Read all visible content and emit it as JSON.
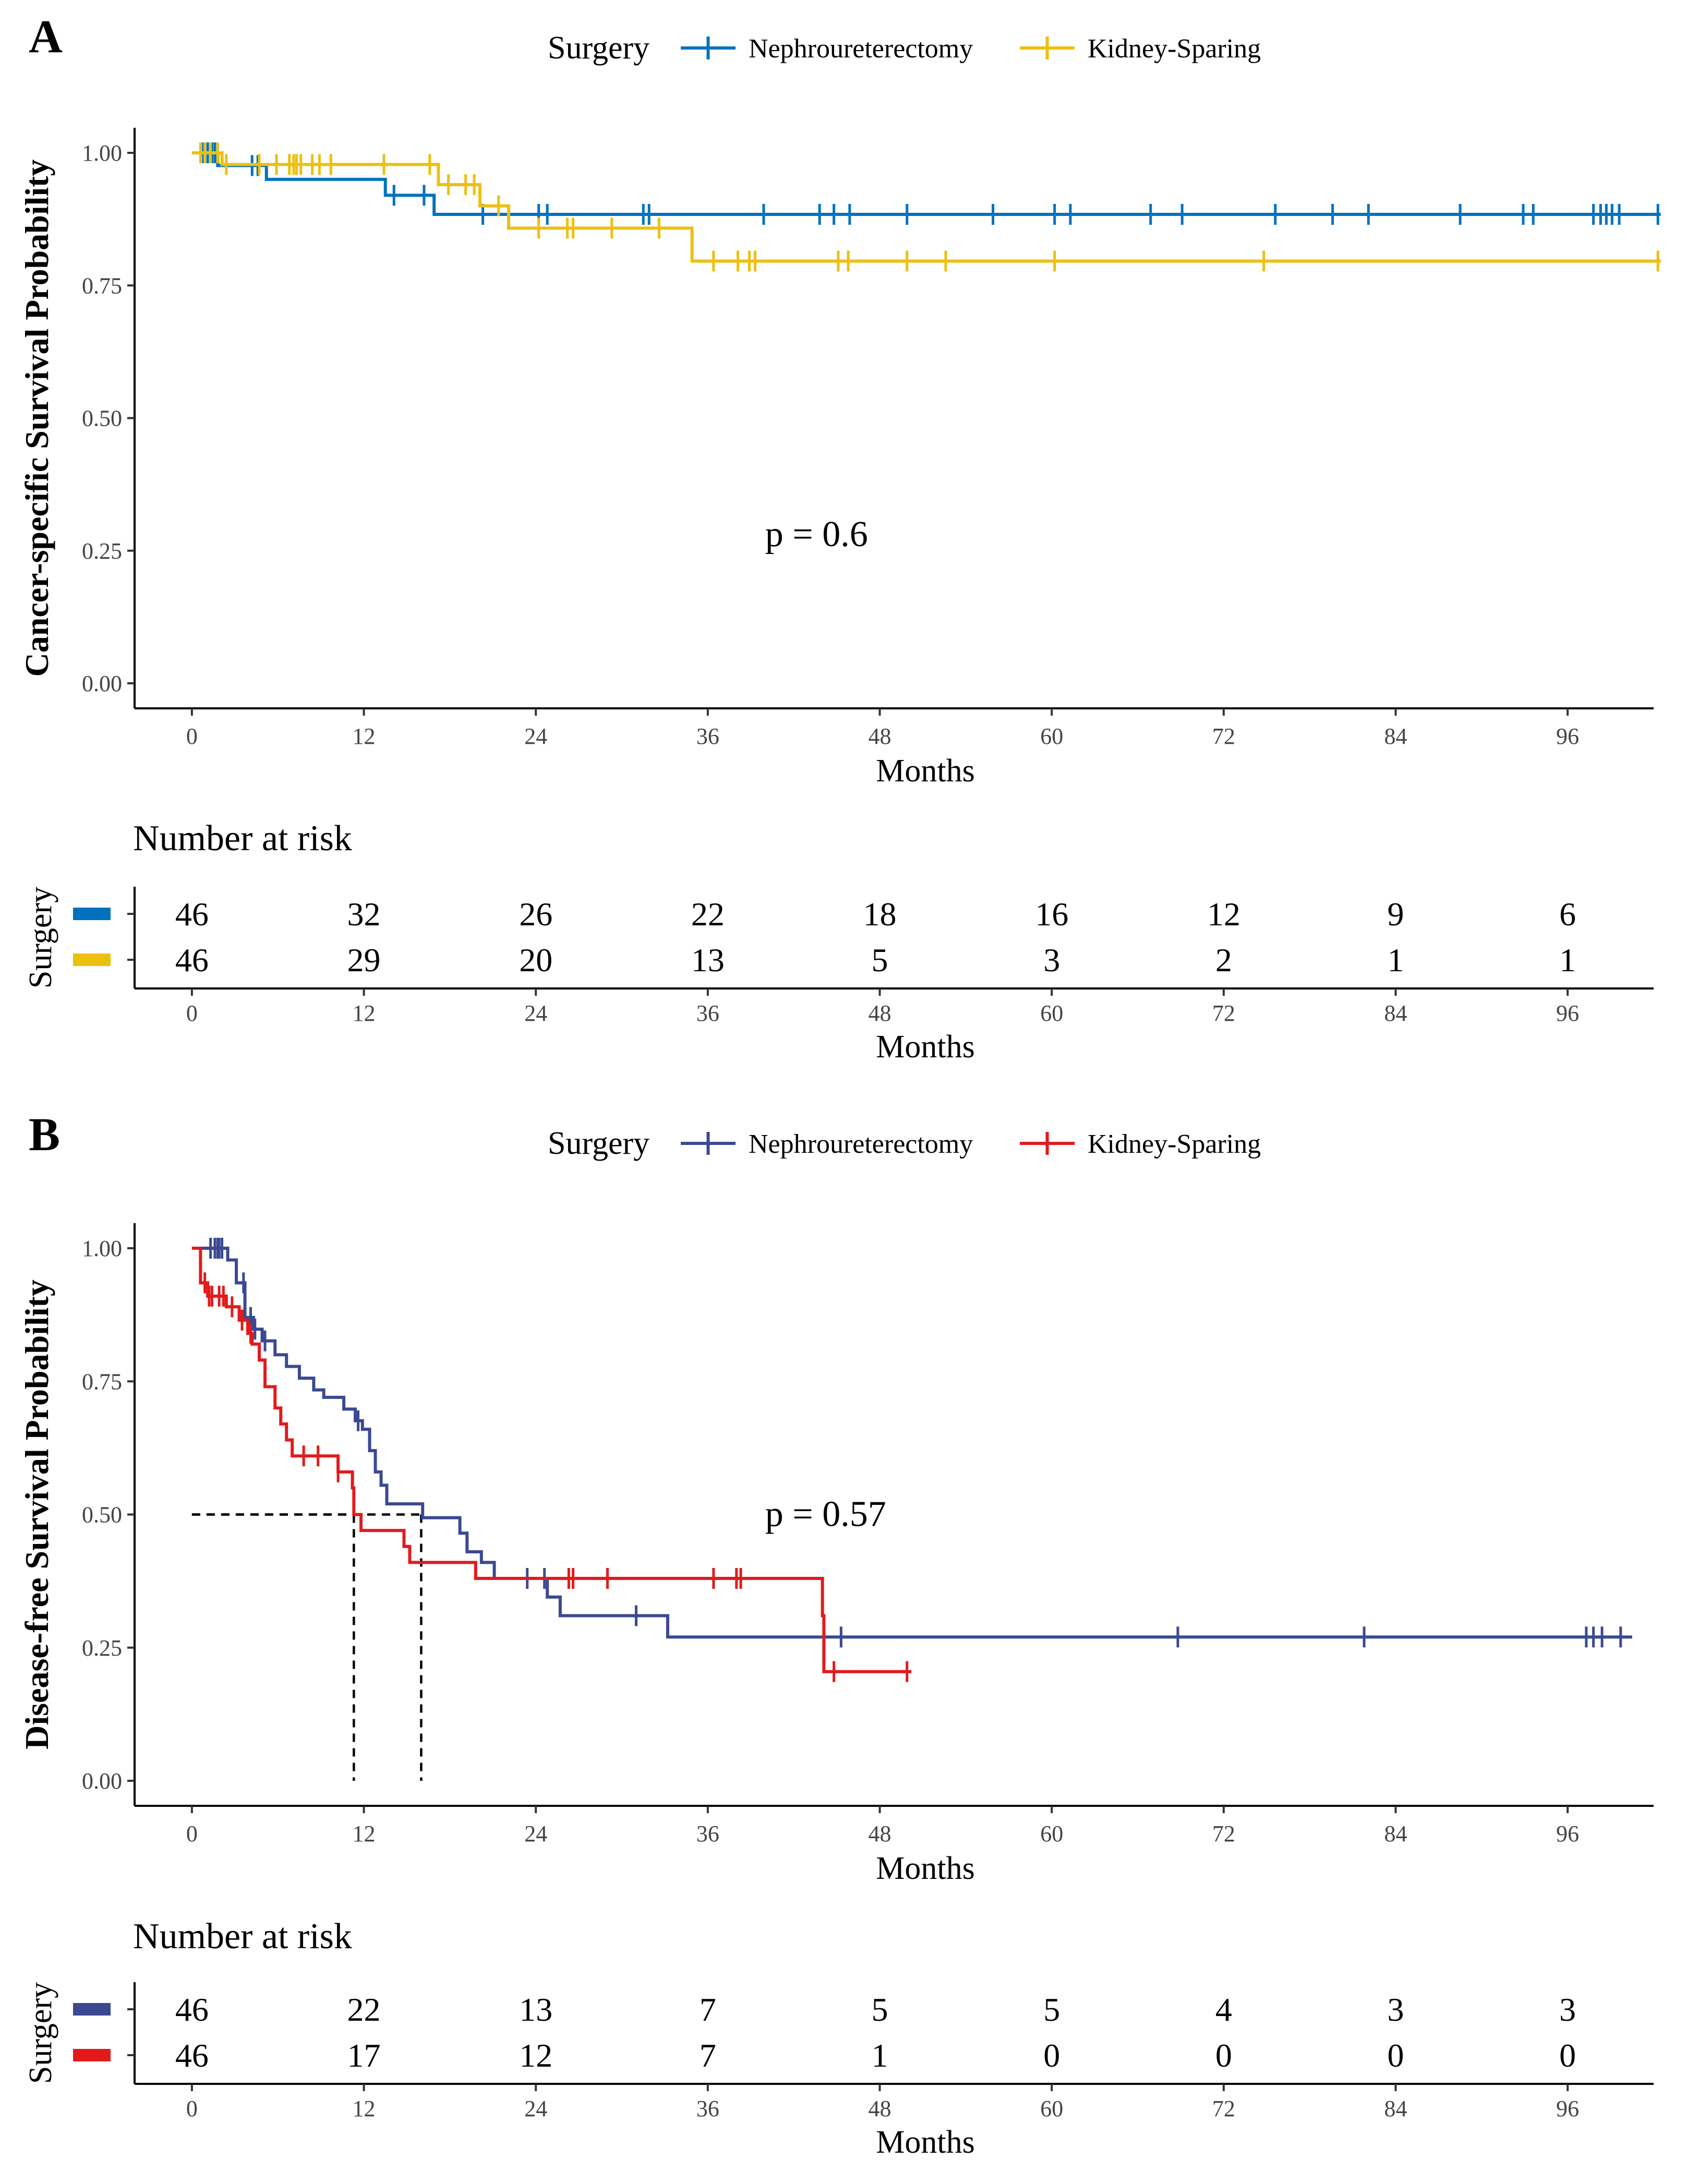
{
  "chart_data": [
    {
      "type": "line",
      "subtype": "kaplan-meier",
      "panel_label": "A",
      "legend": {
        "title": "Surgery",
        "entries": [
          "Nephroureterectomy",
          "Kidney-Sparing"
        ],
        "placement": "top-center"
      },
      "ylabel": "Cancer-specific Survival Probability",
      "xlabel": "Months",
      "xlim": [
        -4,
        102
      ],
      "ylim": [
        0,
        1.0
      ],
      "xticks": [
        0,
        12,
        24,
        36,
        48,
        60,
        72,
        84,
        96
      ],
      "xtick_labels": [
        "0",
        "12",
        "24",
        "36",
        "48",
        "60",
        "72",
        "84",
        "96"
      ],
      "yticks": [
        0,
        0.25,
        0.5,
        0.75,
        1.0
      ],
      "ytick_labels": [
        "0.00",
        "0.25",
        "0.50",
        "0.75",
        "1.00"
      ],
      "pvalue": "p = 0.6",
      "pvalue_pos": [
        40,
        0.28
      ],
      "series": [
        {
          "name": "Nephroureterectomy",
          "color": "#0072BD",
          "steps": [
            [
              0,
              1.0
            ],
            [
              1.8,
              0.976
            ],
            [
              5.2,
              0.95
            ],
            [
              13.5,
              0.92
            ],
            [
              16.9,
              0.884
            ],
            [
              102.5,
              0.884
            ]
          ],
          "censors": [
            0.8,
            1.1,
            1.4,
            1.6,
            4.2,
            4.6,
            14.1,
            16.2,
            20.3,
            24.2,
            24.8,
            31.5,
            31.9,
            39.9,
            43.8,
            44.8,
            45.9,
            49.9,
            55.9,
            60.2,
            61.3,
            66.9,
            69.1,
            75.6,
            79.6,
            82.1,
            88.5,
            92.9,
            93.6,
            97.8,
            98.3,
            98.7,
            99.1,
            99.6,
            102.3
          ]
        },
        {
          "name": "Kidney-Sparing",
          "color": "#EDC00F",
          "steps": [
            [
              0,
              1.0
            ],
            [
              2.1,
              0.978
            ],
            [
              17.2,
              0.94
            ],
            [
              20.1,
              0.9
            ],
            [
              22.1,
              0.858
            ],
            [
              34.9,
              0.796
            ],
            [
              102.5,
              0.796
            ]
          ],
          "censors": [
            0.6,
            0.9,
            1.3,
            1.8,
            2.4,
            4.7,
            5.9,
            6.8,
            7.1,
            7.3,
            7.6,
            8.4,
            8.9,
            9.7,
            13.4,
            16.6,
            17.9,
            19.1,
            19.7,
            21.4,
            24.2,
            26.2,
            26.6,
            29.3,
            32.6,
            36.4,
            38.1,
            38.9,
            39.3,
            45.1,
            45.8,
            49.9,
            52.6,
            60.2,
            74.8,
            102.3
          ]
        }
      ],
      "risk_table": {
        "title": "Number at risk",
        "ylabel": "Surgery",
        "xlabel": "Months",
        "rows": [
          {
            "name": "Nephroureterectomy",
            "color": "#0072BD",
            "values": [
              "46",
              "32",
              "26",
              "22",
              "18",
              "16",
              "12",
              "9",
              "6"
            ]
          },
          {
            "name": "Kidney-Sparing",
            "color": "#EDC00F",
            "values": [
              "46",
              "29",
              "20",
              "13",
              "5",
              "3",
              "2",
              "1",
              "1"
            ]
          }
        ]
      }
    },
    {
      "type": "line",
      "subtype": "kaplan-meier",
      "panel_label": "B",
      "legend": {
        "title": "Surgery",
        "entries": [
          "Nephroureterectomy",
          "Kidney-Sparing"
        ],
        "placement": "top-center"
      },
      "ylabel": "Disease-free Survival Probability",
      "xlabel": "Months",
      "xlim": [
        -4,
        102
      ],
      "ylim": [
        0,
        1.0
      ],
      "xticks": [
        0,
        12,
        24,
        36,
        48,
        60,
        72,
        84,
        96
      ],
      "xtick_labels": [
        "0",
        "12",
        "24",
        "36",
        "48",
        "60",
        "72",
        "84",
        "96"
      ],
      "yticks": [
        0,
        0.25,
        0.5,
        0.75,
        1.0
      ],
      "ytick_labels": [
        "0.00",
        "0.25",
        "0.50",
        "0.75",
        "1.00"
      ],
      "pvalue": "p = 0.57",
      "pvalue_pos": [
        40,
        0.5
      ],
      "median_lines": [
        {
          "x": 11.3,
          "y": 0.5
        },
        {
          "x": 16.0,
          "y": 0.5
        }
      ],
      "series": [
        {
          "name": "Nephroureterectomy",
          "color": "#3B4992",
          "steps": [
            [
              0,
              1.0
            ],
            [
              2.5,
              0.978
            ],
            [
              3.1,
              0.935
            ],
            [
              3.7,
              0.87
            ],
            [
              4.3,
              0.848
            ],
            [
              4.9,
              0.826
            ],
            [
              5.8,
              0.8
            ],
            [
              6.6,
              0.778
            ],
            [
              7.5,
              0.756
            ],
            [
              8.5,
              0.734
            ],
            [
              9.2,
              0.72
            ],
            [
              10.6,
              0.698
            ],
            [
              11.4,
              0.676
            ],
            [
              11.9,
              0.66
            ],
            [
              12.4,
              0.62
            ],
            [
              12.8,
              0.58
            ],
            [
              13.2,
              0.555
            ],
            [
              13.6,
              0.52
            ],
            [
              16.1,
              0.494
            ],
            [
              18.7,
              0.465
            ],
            [
              19.2,
              0.43
            ],
            [
              20.2,
              0.41
            ],
            [
              21.1,
              0.38
            ],
            [
              24.8,
              0.345
            ],
            [
              25.7,
              0.31
            ],
            [
              33.2,
              0.27
            ],
            [
              100.5,
              0.27
            ]
          ],
          "censors": [
            1.3,
            1.6,
            1.8,
            1.9,
            2.1,
            3.6,
            4.1,
            4.4,
            5.1,
            11.6,
            23.4,
            24.6,
            31.0,
            45.3,
            68.8,
            81.8,
            97.3,
            97.8,
            98.4,
            99.7
          ]
        },
        {
          "name": "Kidney-Sparing",
          "color": "#E31A1C",
          "steps": [
            [
              0,
              1.0
            ],
            [
              0.6,
              0.935
            ],
            [
              1.1,
              0.91
            ],
            [
              2.4,
              0.89
            ],
            [
              3.3,
              0.865
            ],
            [
              3.9,
              0.84
            ],
            [
              4.2,
              0.82
            ],
            [
              4.7,
              0.79
            ],
            [
              5.1,
              0.74
            ],
            [
              5.8,
              0.7
            ],
            [
              6.2,
              0.67
            ],
            [
              6.6,
              0.64
            ],
            [
              7.0,
              0.61
            ],
            [
              10.2,
              0.58
            ],
            [
              11.2,
              0.55
            ],
            [
              11.3,
              0.5
            ],
            [
              11.8,
              0.47
            ],
            [
              14.8,
              0.44
            ],
            [
              15.2,
              0.41
            ],
            [
              19.8,
              0.38
            ],
            [
              44.0,
              0.31
            ],
            [
              44.1,
              0.205
            ],
            [
              50.2,
              0.205
            ]
          ],
          "censors": [
            0.9,
            1.2,
            1.4,
            1.9,
            2.2,
            2.8,
            3.5,
            4.1,
            7.8,
            8.8,
            10.2,
            26.3,
            26.6,
            29.0,
            36.4,
            38.0,
            38.3,
            44.8,
            49.9
          ]
        }
      ],
      "risk_table": {
        "title": "Number at risk",
        "ylabel": "Surgery",
        "xlabel": "Months",
        "rows": [
          {
            "name": "Nephroureterectomy",
            "color": "#3B4992",
            "values": [
              "46",
              "22",
              "13",
              "7",
              "5",
              "5",
              "4",
              "3",
              "3"
            ]
          },
          {
            "name": "Kidney-Sparing",
            "color": "#E31A1C",
            "values": [
              "46",
              "17",
              "12",
              "7",
              "1",
              "0",
              "0",
              "0",
              "0"
            ]
          }
        ]
      }
    }
  ]
}
